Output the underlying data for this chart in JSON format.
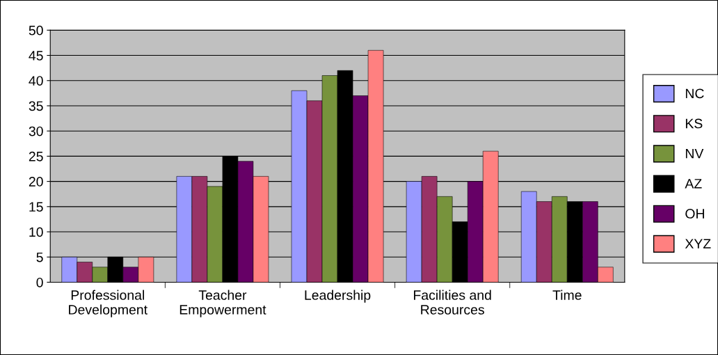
{
  "chart_data": {
    "type": "bar",
    "categories": [
      "Professional\nDevelopment",
      "Teacher\nEmpowerment",
      "Leadership",
      "Facilities and\nResources",
      "Time"
    ],
    "series": [
      {
        "name": "NC",
        "color": "#9999ff",
        "values": [
          5,
          21,
          38,
          20,
          18
        ]
      },
      {
        "name": "KS",
        "color": "#993366",
        "values": [
          4,
          21,
          36,
          21,
          16
        ]
      },
      {
        "name": "NV",
        "color": "#77933c",
        "values": [
          3,
          19,
          41,
          17,
          17
        ]
      },
      {
        "name": "AZ",
        "color": "#000000",
        "values": [
          5,
          25,
          42,
          12,
          16
        ]
      },
      {
        "name": "OH",
        "color": "#660066",
        "values": [
          3,
          24,
          37,
          20,
          16
        ]
      },
      {
        "name": "XYZ",
        "color": "#ff8080",
        "values": [
          5,
          21,
          46,
          26,
          3
        ]
      }
    ],
    "ylim": [
      0,
      50
    ],
    "yticks": [
      0,
      5,
      10,
      15,
      20,
      25,
      30,
      35,
      40,
      45,
      50
    ],
    "grid": "y",
    "legend": "right"
  }
}
